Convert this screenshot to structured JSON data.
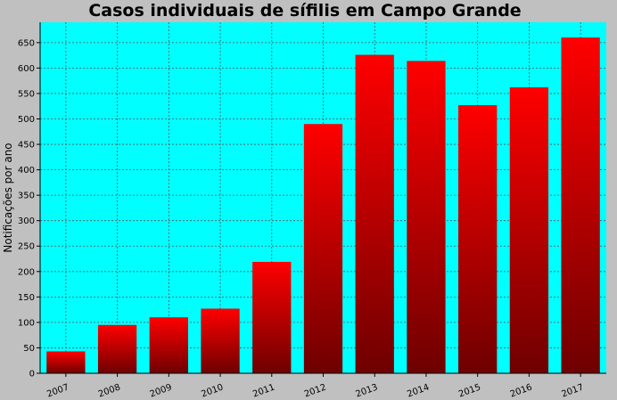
{
  "chart_data": {
    "type": "bar",
    "title": "Casos individuais de sífilis em Campo Grande",
    "xlabel": "",
    "ylabel": "Notificações por ano",
    "categories": [
      "2007",
      "2008",
      "2009",
      "2010",
      "2011",
      "2012",
      "2013",
      "2014",
      "2015",
      "2016",
      "2017"
    ],
    "values": [
      43,
      95,
      110,
      127,
      219,
      490,
      626,
      614,
      527,
      562,
      660
    ],
    "ylim": [
      0,
      690
    ],
    "yticks": [
      0,
      50,
      100,
      150,
      200,
      250,
      300,
      350,
      400,
      450,
      500,
      550,
      600,
      650
    ],
    "grid": true,
    "legend": "none",
    "colors": {
      "background": "#c0c0c0",
      "plot_background": "#00ffff",
      "bar_top": "#ff0000",
      "bar_bottom": "#6e0000",
      "grid": "#555555"
    }
  }
}
